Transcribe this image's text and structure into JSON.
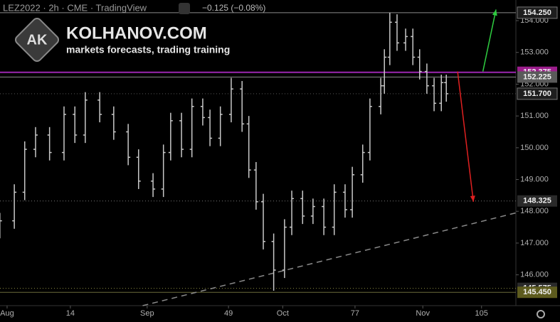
{
  "chart_data": {
    "type": "ohlc",
    "header": {
      "symbol": "LEZ2022 · 2h · CME · TradingView",
      "change": "−0.125 (−0.08%)"
    },
    "watermark": {
      "logo": "AK",
      "site": "KOLHANOV.COM",
      "tagline": "markets forecasts, trading training"
    },
    "color": "#c8c8c8",
    "x": [
      -1.6,
      1.6,
      3.9,
      6.3,
      9.4,
      12.6,
      15,
      17.3,
      20.5,
      23.6,
      26.8,
      29.1,
      32.3,
      34.6,
      36.2,
      38.6,
      40.9,
      43.3,
      44.9,
      47.2,
      49.6,
      52,
      53.5,
      55.1,
      56.7,
      59,
      61.4,
      63,
      65.4,
      67.7,
      70.1,
      72.4,
      74.8,
      76.4,
      78.7,
      80.3,
      82.7,
      83.5,
      84.7,
      86.3,
      88.2,
      89.8,
      91.3,
      92.9,
      94.5,
      96.1,
      97.2
    ],
    "open": [
      147.4,
      147.7,
      148.6,
      149.95,
      150.4,
      149.85,
      151.05,
      150.4,
      151.5,
      151.05,
      150.5,
      149.7,
      148.95,
      148.7,
      149.85,
      150.85,
      149.95,
      151.3,
      150.95,
      150.3,
      151.05,
      151.85,
      150.75,
      149.3,
      148.3,
      147.05,
      146.15,
      147.5,
      148.4,
      147.85,
      148.15,
      147.5,
      148.6,
      148.05,
      149.15,
      149.85,
      151.3,
      151.95,
      152.85,
      153.95,
      153.3,
      153.5,
      152.85,
      152.4,
      151.95,
      151.4,
      152.05
    ],
    "high": [
      147.95,
      148.85,
      150.2,
      150.65,
      150.65,
      151.3,
      151.3,
      151.75,
      151.75,
      151.3,
      150.75,
      149.95,
      149.2,
      150.1,
      151.1,
      151.1,
      151.55,
      151.55,
      151.2,
      151.3,
      152.2,
      152.1,
      151.0,
      149.55,
      148.55,
      147.3,
      147.75,
      148.65,
      148.65,
      148.4,
      148.4,
      148.85,
      148.85,
      149.4,
      150.1,
      151.55,
      152.2,
      153.1,
      154.25,
      154.2,
      153.75,
      153.75,
      153.1,
      152.65,
      152.2,
      152.3,
      152.3
    ],
    "low": [
      147.15,
      147.45,
      148.35,
      149.7,
      149.6,
      149.6,
      150.15,
      150.15,
      150.8,
      150.25,
      149.45,
      148.7,
      148.45,
      148.45,
      149.6,
      149.7,
      149.7,
      150.7,
      150.05,
      150.05,
      150.8,
      150.5,
      149.05,
      148.05,
      146.8,
      145.5,
      145.9,
      147.25,
      147.6,
      147.6,
      147.25,
      147.25,
      147.8,
      147.8,
      148.9,
      149.6,
      151.05,
      151.7,
      152.6,
      153.05,
      153.05,
      152.6,
      152.15,
      151.7,
      151.15,
      151.15,
      151.45
    ],
    "close": [
      147.7,
      148.6,
      149.95,
      150.4,
      149.85,
      151.05,
      150.4,
      151.5,
      151.05,
      150.5,
      149.7,
      148.95,
      148.7,
      149.85,
      150.85,
      149.95,
      151.3,
      150.95,
      150.3,
      151.05,
      151.85,
      150.75,
      149.3,
      148.3,
      147.05,
      146.15,
      147.5,
      148.4,
      147.85,
      148.15,
      147.5,
      148.6,
      148.05,
      149.15,
      149.85,
      151.3,
      151.95,
      152.85,
      153.95,
      153.3,
      153.5,
      152.85,
      152.4,
      151.95,
      151.4,
      152.05,
      151.7
    ],
    "xlim": [
      -1.57,
      112.6
    ],
    "ylim": [
      145.03,
      154.65
    ],
    "xticks": [
      {
        "value": 0,
        "label": "Aug"
      },
      14,
      {
        "value": 31,
        "label": "Sep"
      },
      49,
      {
        "value": 61,
        "label": "Oct"
      },
      77,
      {
        "value": 92,
        "label": "Nov"
      },
      105
    ],
    "yticks": [
      {
        "value": 146,
        "label": "146.000"
      },
      {
        "value": 147,
        "label": "147.000"
      },
      {
        "value": 148,
        "label": "148.000"
      },
      {
        "value": 149,
        "label": "149.000"
      },
      {
        "value": 150,
        "label": "150.000"
      },
      {
        "value": 151,
        "label": "151.000"
      },
      {
        "value": 152,
        "label": "152.000"
      },
      {
        "value": 153,
        "label": "153.000"
      },
      {
        "value": 154,
        "label": "154.000"
      }
    ],
    "levels": [
      {
        "value": 154.25,
        "label": "154.250",
        "color": "#8a8a8a",
        "box": "#1e1e1e",
        "style": "solid"
      },
      {
        "value": 152.375,
        "label": "152.375",
        "color": "#9c27b0",
        "box": "#9c1d8c",
        "style": "solid"
      },
      {
        "value": 152.225,
        "label": "152.225",
        "color": "#8a8a8a",
        "box": "#5a5a5a",
        "style": "solid"
      },
      {
        "value": 151.7,
        "label": "151.700",
        "color": "#555555",
        "box": "#1e1e1e",
        "style": "dotted"
      },
      {
        "value": 148.325,
        "label": "148.325",
        "color": "#777777",
        "box": "#2a2a2a",
        "style": "dotted"
      },
      {
        "value": 145.575,
        "label": "145.575",
        "color": "#8a8a40",
        "box": "#2a2a2a",
        "style": "dotted"
      },
      {
        "value": 145.45,
        "label": "145.450",
        "color": "#6b6b3a",
        "box": "#5d5b1e",
        "style": "solid"
      }
    ],
    "trendline": {
      "x": [
        30,
        112.6
      ],
      "y": [
        145.03,
        147.95
      ],
      "color": "#8a8a8a"
    },
    "arrows": [
      {
        "x": [
          105.3,
          108.2
        ],
        "y": [
          152.4,
          154.35
        ],
        "color": "#2ecc40"
      },
      {
        "x": [
          99.7,
          103.2
        ],
        "y": [
          152.4,
          148.3
        ],
        "color": "#e02020"
      }
    ]
  }
}
